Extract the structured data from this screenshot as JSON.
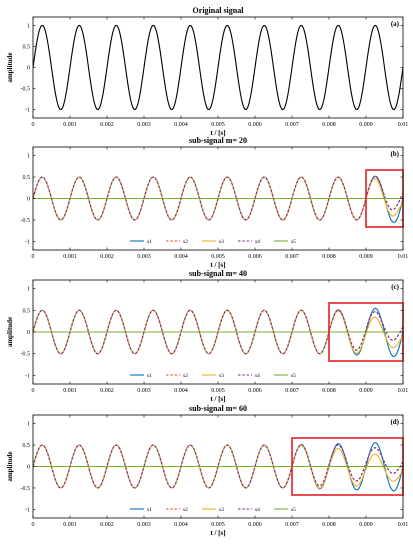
{
  "colors": {
    "axis": "#000000",
    "signal": "#000000",
    "highlight": "#e21f26",
    "s1": "#0072bd",
    "s2": "#d95319",
    "s3": "#edb120",
    "s4": "#7e2f8e",
    "s5": "#77ac30"
  },
  "chart_data": [
    {
      "type": "line",
      "panel": "(a)",
      "title": "Original signal",
      "xlabel": "t / [s]",
      "ylabel": "amplitude",
      "xlim": [
        0,
        0.01
      ],
      "ylim": [
        -1.2,
        1.2
      ],
      "x_ticks": [
        "0",
        "0.001",
        "0.002",
        "0.003",
        "0.004",
        "0.005",
        "0.006",
        "0.007",
        "0.008",
        "0.009",
        "0.01"
      ],
      "y_ticks": [
        "1",
        "0.5",
        "0",
        "-0.5",
        "-1"
      ],
      "series": [
        {
          "frequency_hz": 1000,
          "amplitude": 1,
          "x_range": [
            0,
            0.01
          ],
          "color": "#000000"
        }
      ]
    },
    {
      "type": "line",
      "panel": "(b)",
      "title": "sub-signal m= 20",
      "xlabel": "t / [s]",
      "ylabel": "",
      "xlim": [
        0,
        0.01
      ],
      "ylim": [
        -1.2,
        1.2
      ],
      "x_ticks": [
        "0",
        "0.001",
        "0.002",
        "0.003",
        "0.004",
        "0.005",
        "0.006",
        "0.007",
        "0.008",
        "0.009",
        "0.01"
      ],
      "y_ticks": [
        "1",
        "0.5",
        "0",
        "-0.5",
        "-1"
      ],
      "highlight_x_range": [
        0.009,
        0.01
      ],
      "legend": [
        "s1",
        "s2",
        "s3",
        "s4",
        "s5"
      ],
      "legend_position": "bottom-center",
      "series": [
        {
          "name": "s1",
          "frequency_hz": 1000,
          "amplitude": 0.5,
          "x_range": [
            0,
            0.01
          ],
          "color": "#0072bd",
          "dash": "solid"
        },
        {
          "name": "s2",
          "frequency_hz": 1000,
          "amplitude": 0.5,
          "x_range": [
            0,
            0.01
          ],
          "color": "#d95319",
          "dash": "dashed"
        },
        {
          "name": "s3",
          "frequency_hz": 1000,
          "amplitude": 0.5,
          "x_range": [
            0,
            0.01
          ],
          "color": "#edb120",
          "dash": "solid"
        },
        {
          "name": "s4",
          "frequency_hz": 1000,
          "amplitude": 0.5,
          "x_range": [
            0,
            0.01
          ],
          "color": "#7e2f8e",
          "dash": "dashed"
        },
        {
          "name": "s5",
          "constant": 0,
          "x_range": [
            0,
            0.01
          ],
          "color": "#77ac30",
          "dash": "solid"
        }
      ]
    },
    {
      "type": "line",
      "panel": "(c)",
      "title": "sub-signal m= 40",
      "xlabel": "t / [s]",
      "ylabel": "amplitude",
      "xlim": [
        0,
        0.01
      ],
      "ylim": [
        -1.2,
        1.2
      ],
      "x_ticks": [
        "0",
        "0.001",
        "0.002",
        "0.003",
        "0.004",
        "0.005",
        "0.006",
        "0.007",
        "0.008",
        "0.009",
        "0.01"
      ],
      "y_ticks": [
        "1",
        "0.5",
        "0",
        "-0.5",
        "-1"
      ],
      "highlight_x_range": [
        0.008,
        0.01
      ],
      "legend": [
        "s1",
        "s2",
        "s3",
        "s4",
        "s5"
      ],
      "legend_position": "bottom-center",
      "series": [
        {
          "name": "s1",
          "frequency_hz": 1000,
          "amplitude": 0.5,
          "x_range": [
            0,
            0.01
          ],
          "color": "#0072bd",
          "dash": "solid"
        },
        {
          "name": "s2",
          "frequency_hz": 1000,
          "amplitude": 0.5,
          "x_range": [
            0,
            0.01
          ],
          "color": "#d95319",
          "dash": "dashed"
        },
        {
          "name": "s3",
          "frequency_hz": 1000,
          "amplitude": 0.5,
          "x_range": [
            0,
            0.01
          ],
          "color": "#edb120",
          "dash": "solid"
        },
        {
          "name": "s4",
          "frequency_hz": 1000,
          "amplitude": 0.5,
          "x_range": [
            0,
            0.01
          ],
          "color": "#7e2f8e",
          "dash": "dashed"
        },
        {
          "name": "s5",
          "constant": 0,
          "x_range": [
            0,
            0.01
          ],
          "color": "#77ac30",
          "dash": "solid"
        }
      ]
    },
    {
      "type": "line",
      "panel": "(d)",
      "title": "sub-signal m= 60",
      "xlabel": "t / [s]",
      "ylabel": "amplitude",
      "xlim": [
        0,
        0.01
      ],
      "ylim": [
        -1.2,
        1.2
      ],
      "x_ticks": [
        "0",
        "0.001",
        "0.002",
        "0.003",
        "0.004",
        "0.005",
        "0.006",
        "0.007",
        "0.008",
        "0.009",
        "0.01"
      ],
      "y_ticks": [
        "1",
        "0.5",
        "0",
        "-0.5",
        "-1"
      ],
      "highlight_x_range": [
        0.007,
        0.01
      ],
      "legend": [
        "s1",
        "s2",
        "s3",
        "s4",
        "s5"
      ],
      "legend_position": "bottom-center",
      "series": [
        {
          "name": "s1",
          "frequency_hz": 1000,
          "amplitude": 0.5,
          "x_range": [
            0,
            0.01
          ],
          "color": "#0072bd",
          "dash": "solid"
        },
        {
          "name": "s2",
          "frequency_hz": 1000,
          "amplitude": 0.5,
          "x_range": [
            0,
            0.01
          ],
          "color": "#d95319",
          "dash": "dashed"
        },
        {
          "name": "s3",
          "frequency_hz": 1000,
          "amplitude": 0.5,
          "x_range": [
            0,
            0.01
          ],
          "color": "#edb120",
          "dash": "solid"
        },
        {
          "name": "s4",
          "frequency_hz": 1000,
          "amplitude": 0.5,
          "x_range": [
            0,
            0.01
          ],
          "color": "#7e2f8e",
          "dash": "dashed"
        },
        {
          "name": "s5",
          "constant": 0,
          "x_range": [
            0,
            0.01
          ],
          "color": "#77ac30",
          "dash": "solid"
        }
      ]
    }
  ]
}
